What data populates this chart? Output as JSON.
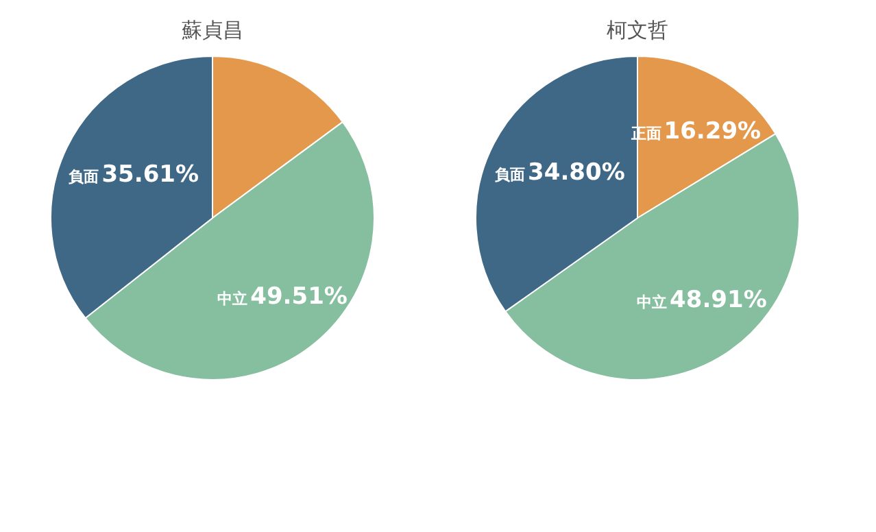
{
  "chart_data": [
    {
      "type": "pie",
      "title": "蘇貞昌",
      "categories": [
        null,
        "中立",
        "負面"
      ],
      "values": [
        14.88,
        49.51,
        35.61
      ],
      "colors": [
        "#e3984c",
        "#86bea0",
        "#3e6885"
      ],
      "value_labels": [
        null,
        "49.51%",
        "35.61%"
      ]
    },
    {
      "type": "pie",
      "title": "柯文哲",
      "categories": [
        "正面",
        "中立",
        "負面"
      ],
      "values": [
        16.29,
        48.91,
        34.8
      ],
      "colors": [
        "#e3984c",
        "#86bea0",
        "#3e6885"
      ],
      "value_labels": [
        "16.29%",
        "48.91%",
        "34.80%"
      ]
    }
  ]
}
